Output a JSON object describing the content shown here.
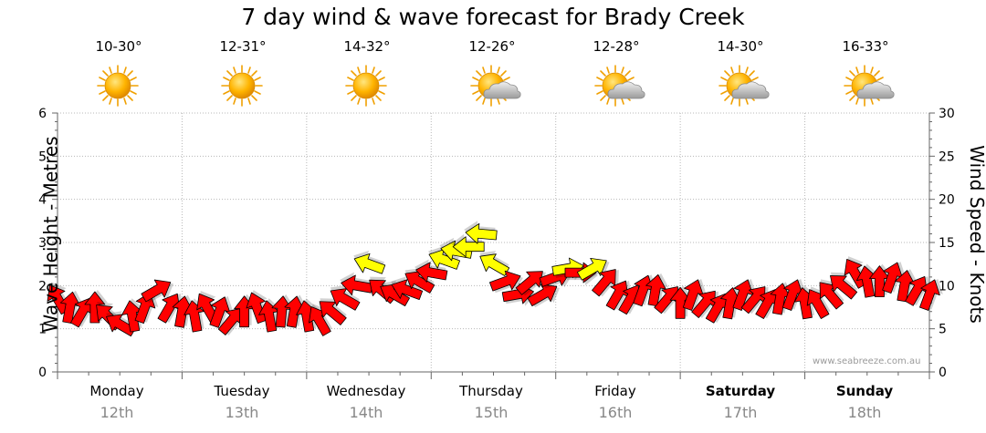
{
  "title": "7 day wind & wave forecast for Brady Creek",
  "credit": "www.seabreeze.com.au",
  "days": [
    {
      "name": "Monday",
      "date": "12th",
      "temp": "10-30°",
      "weather": "sunny",
      "bold": false
    },
    {
      "name": "Tuesday",
      "date": "13th",
      "temp": "12-31°",
      "weather": "sunny",
      "bold": false
    },
    {
      "name": "Wednesday",
      "date": "14th",
      "temp": "14-32°",
      "weather": "sunny",
      "bold": false
    },
    {
      "name": "Thursday",
      "date": "15th",
      "temp": "12-26°",
      "weather": "partly-cloudy",
      "bold": false
    },
    {
      "name": "Friday",
      "date": "16th",
      "temp": "12-28°",
      "weather": "partly-cloudy",
      "bold": false
    },
    {
      "name": "Saturday",
      "date": "17th",
      "temp": "14-30°",
      "weather": "partly-cloudy",
      "bold": true
    },
    {
      "name": "Sunday",
      "date": "18th",
      "temp": "16-33°",
      "weather": "partly-cloudy",
      "bold": true
    }
  ],
  "chart_data": {
    "type": "line",
    "title": "7 day wind & wave forecast for Brady Creek",
    "xlabel": "",
    "ylabel_left": "Wave Height - Metres",
    "ylabel_right": "Wind Speed - Knots",
    "ylim_left": [
      0,
      6
    ],
    "ylim_right": [
      0,
      30
    ],
    "yticks_left": [
      0,
      1,
      2,
      3,
      4,
      5,
      6
    ],
    "yticks_right": [
      0,
      5,
      10,
      15,
      20,
      25,
      30
    ],
    "grid": true,
    "colors": {
      "strong": "#ff0000",
      "moderate": "#ffff00",
      "outline": "#000000"
    },
    "series": [
      {
        "name": "Wind Speed (knots)",
        "unit": "knots",
        "x_days": [
          0.0,
          0.1,
          0.2,
          0.3,
          0.4,
          0.5,
          0.6,
          0.7,
          0.8,
          0.9,
          1.0,
          1.1,
          1.2,
          1.3,
          1.4,
          1.5,
          1.6,
          1.7,
          1.8,
          1.9,
          2.0,
          2.1,
          2.2,
          2.3,
          2.4,
          2.5,
          2.6,
          2.7,
          2.8,
          2.9,
          3.0,
          3.1,
          3.2,
          3.3,
          3.4,
          3.5,
          3.6,
          3.7,
          3.8,
          3.9,
          4.0,
          4.1,
          4.2,
          4.3,
          4.4,
          4.5,
          4.6,
          4.7,
          4.8,
          4.9,
          5.0,
          5.1,
          5.2,
          5.3,
          5.4,
          5.5,
          5.6,
          5.7,
          5.8,
          5.9,
          6.0,
          6.1,
          6.2,
          6.3,
          6.4,
          6.5,
          6.6,
          6.7,
          6.8,
          6.9,
          7.0
        ],
        "values": [
          8.5,
          7.5,
          7.0,
          7.5,
          6.5,
          5.5,
          6.5,
          7.5,
          9.5,
          7.5,
          7.0,
          6.5,
          7.5,
          7.0,
          6.0,
          7.0,
          7.5,
          6.5,
          7.0,
          7.0,
          6.5,
          6.0,
          7.0,
          8.5,
          10.0,
          12.5,
          9.5,
          9.0,
          9.5,
          10.5,
          11.5,
          13.0,
          14.0,
          14.5,
          16.0,
          12.5,
          10.5,
          9.0,
          10.5,
          9.0,
          11.0,
          12.0,
          11.5,
          12.0,
          10.5,
          9.0,
          8.5,
          9.5,
          9.5,
          8.5,
          8.0,
          9.0,
          8.0,
          7.5,
          8.0,
          9.0,
          8.5,
          8.0,
          8.5,
          9.0,
          8.0,
          8.0,
          9.0,
          10.0,
          11.5,
          10.5,
          10.5,
          11.0,
          10.0,
          9.5,
          9.0
        ],
        "directions_deg": [
          60,
          100,
          120,
          90,
          45,
          30,
          80,
          110,
          150,
          120,
          100,
          80,
          60,
          110,
          130,
          90,
          70,
          80,
          95,
          100,
          80,
          60,
          40,
          30,
          10,
          20,
          40,
          30,
          20,
          30,
          10,
          20,
          10,
          0,
          5,
          30,
          160,
          170,
          140,
          150,
          160,
          170,
          180,
          150,
          130,
          120,
          120,
          110,
          100,
          130,
          90,
          110,
          130,
          120,
          100,
          110,
          130,
          120,
          100,
          110,
          80,
          60,
          50,
          40,
          60,
          80,
          90,
          110,
          100,
          120,
          110
        ]
      }
    ]
  }
}
